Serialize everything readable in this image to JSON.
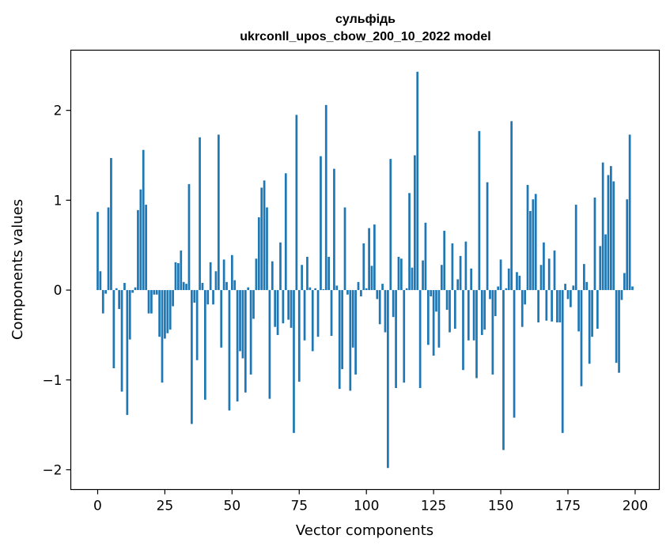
{
  "chart_data": {
    "type": "bar",
    "title": "сульфідь",
    "subtitle": "ukrconll_upos_cbow_200_10_2022 model",
    "xlabel": "Vector components",
    "ylabel": "Components values",
    "xlim": [
      -10,
      209
    ],
    "ylim": [
      -2.22,
      2.67
    ],
    "xticks": [
      0,
      25,
      50,
      75,
      100,
      125,
      150,
      175,
      200
    ],
    "yticks": [
      -2,
      -1,
      0,
      1,
      2
    ],
    "xtick_labels": [
      "0",
      "25",
      "50",
      "75",
      "100",
      "125",
      "150",
      "175",
      "200"
    ],
    "ytick_labels": [
      "−2",
      "−1",
      "0",
      "1",
      "2"
    ],
    "grid": false,
    "bar_color": "#1f77b4",
    "x": [
      0,
      1,
      2,
      3,
      4,
      5,
      6,
      7,
      8,
      9,
      10,
      11,
      12,
      13,
      14,
      15,
      16,
      17,
      18,
      19,
      20,
      21,
      22,
      23,
      24,
      25,
      26,
      27,
      28,
      29,
      30,
      31,
      32,
      33,
      34,
      35,
      36,
      37,
      38,
      39,
      40,
      41,
      42,
      43,
      44,
      45,
      46,
      47,
      48,
      49,
      50,
      51,
      52,
      53,
      54,
      55,
      56,
      57,
      58,
      59,
      60,
      61,
      62,
      63,
      64,
      65,
      66,
      67,
      68,
      69,
      70,
      71,
      72,
      73,
      74,
      75,
      76,
      77,
      78,
      79,
      80,
      81,
      82,
      83,
      84,
      85,
      86,
      87,
      88,
      89,
      90,
      91,
      92,
      93,
      94,
      95,
      96,
      97,
      98,
      99,
      100,
      101,
      102,
      103,
      104,
      105,
      106,
      107,
      108,
      109,
      110,
      111,
      112,
      113,
      114,
      115,
      116,
      117,
      118,
      119,
      120,
      121,
      122,
      123,
      124,
      125,
      126,
      127,
      128,
      129,
      130,
      131,
      132,
      133,
      134,
      135,
      136,
      137,
      138,
      139,
      140,
      141,
      142,
      143,
      144,
      145,
      146,
      147,
      148,
      149,
      150,
      151,
      152,
      153,
      154,
      155,
      156,
      157,
      158,
      159,
      160,
      161,
      162,
      163,
      164,
      165,
      166,
      167,
      168,
      169,
      170,
      171,
      172,
      173,
      174,
      175,
      176,
      177,
      178,
      179,
      180,
      181,
      182,
      183,
      184,
      185,
      186,
      187,
      188,
      189,
      190,
      191,
      192,
      193,
      194,
      195,
      196,
      197,
      198,
      199
    ],
    "values": [
      0.87,
      0.21,
      -0.26,
      -0.04,
      0.92,
      1.47,
      -0.87,
      0.02,
      -0.21,
      -1.13,
      0.08,
      -1.39,
      -0.55,
      -0.03,
      0.03,
      0.89,
      1.12,
      1.56,
      0.95,
      -0.26,
      -0.26,
      -0.05,
      -0.05,
      -0.52,
      -1.03,
      -0.54,
      -0.48,
      -0.44,
      -0.18,
      0.31,
      0.3,
      0.44,
      0.09,
      0.07,
      1.18,
      -1.49,
      -0.14,
      -0.78,
      1.7,
      0.08,
      -1.22,
      -0.16,
      0.31,
      -0.16,
      0.21,
      1.73,
      -0.64,
      0.34,
      0.09,
      -1.34,
      0.39,
      0.11,
      -1.24,
      -0.68,
      -0.76,
      -1.14,
      0.03,
      -0.94,
      -0.32,
      0.35,
      0.81,
      1.14,
      1.22,
      0.92,
      -1.21,
      0.32,
      -0.41,
      -0.5,
      0.53,
      -0.37,
      1.3,
      -0.33,
      -0.42,
      -1.59,
      1.95,
      -1.02,
      0.28,
      -0.56,
      0.37,
      0.03,
      -0.68,
      0.02,
      -0.52,
      1.49,
      0.01,
      2.06,
      0.37,
      -0.51,
      1.35,
      0.05,
      -1.1,
      -0.88,
      0.92,
      -0.05,
      -1.12,
      -0.64,
      -0.94,
      0.09,
      -0.07,
      0.52,
      0.02,
      0.69,
      0.27,
      0.73,
      -0.1,
      -0.38,
      0.07,
      -0.47,
      -1.98,
      1.46,
      -0.3,
      -1.09,
      0.37,
      0.35,
      -1.03,
      0.02,
      1.08,
      0.25,
      1.5,
      2.43,
      -1.09,
      0.33,
      0.75,
      -0.61,
      -0.07,
      -0.73,
      -0.24,
      -0.64,
      0.28,
      0.66,
      -0.22,
      -0.47,
      0.52,
      -0.43,
      0.12,
      0.38,
      -0.89,
      0.54,
      -0.56,
      0.24,
      -0.56,
      -0.98,
      1.77,
      -0.5,
      -0.44,
      1.2,
      -0.1,
      -0.94,
      -0.29,
      0.04,
      0.34,
      -1.78,
      0.02,
      0.24,
      1.88,
      -1.42,
      0.2,
      0.16,
      -0.41,
      -0.16,
      1.17,
      0.88,
      1.01,
      1.07,
      -0.36,
      0.28,
      0.53,
      -0.34,
      0.35,
      -0.35,
      0.44,
      -0.36,
      -0.36,
      -1.59,
      0.07,
      -0.1,
      -0.19,
      0.05,
      0.95,
      -0.46,
      -1.07,
      0.29,
      0.09,
      -0.82,
      -0.52,
      1.03,
      -0.43,
      0.49,
      1.42,
      0.62,
      1.28,
      1.38,
      1.21,
      -0.81,
      -0.92,
      -0.11,
      0.19,
      1.01,
      1.73,
      0.04
    ]
  }
}
